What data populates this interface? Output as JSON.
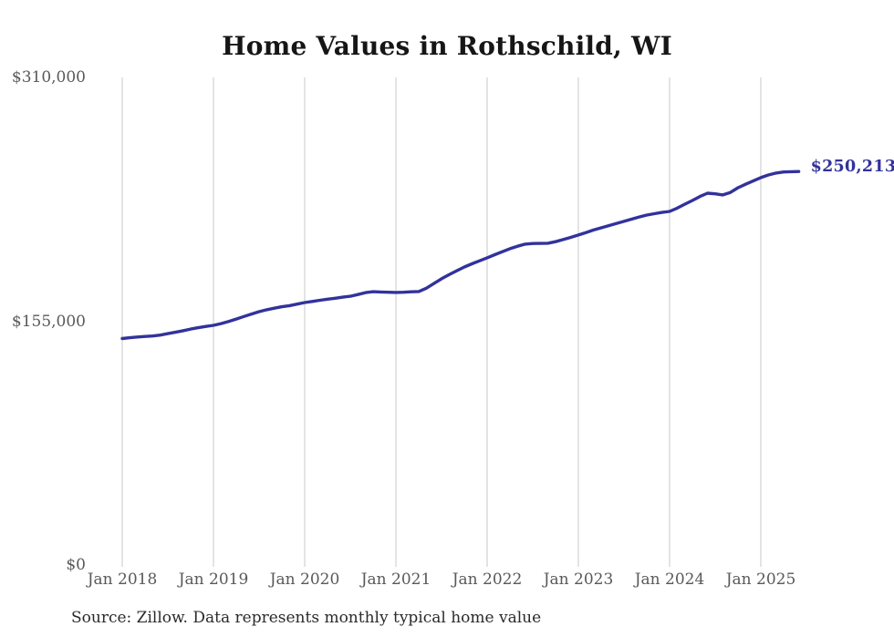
{
  "page": {
    "source_note": "Source: Zillow. Data represents monthly typical home value"
  },
  "chart_data": {
    "type": "line",
    "title": "Home Values in Rothschild, WI",
    "series_name": "Monthly typical home value",
    "xlabel": "",
    "ylabel": "",
    "ylim": [
      0,
      310000
    ],
    "grid": "vertical-only",
    "legend": "none",
    "line_color": "#32329c",
    "gridline_color": "#c9c9c9",
    "tick_label_color": "#595959",
    "end_label": "$250,213",
    "end_value": 250213,
    "y_ticks": [
      {
        "value": 0,
        "label": "$0"
      },
      {
        "value": 155000,
        "label": "$155,000"
      },
      {
        "value": 310000,
        "label": "$310,000"
      }
    ],
    "x_tick_labels": [
      "Jan 2018",
      "Jan 2019",
      "Jan 2020",
      "Jan 2021",
      "Jan 2022",
      "Jan 2023",
      "Jan 2024",
      "Jan 2025"
    ],
    "x": [
      "2018-01",
      "2018-02",
      "2018-03",
      "2018-04",
      "2018-05",
      "2018-06",
      "2018-07",
      "2018-08",
      "2018-09",
      "2018-10",
      "2018-11",
      "2018-12",
      "2019-01",
      "2019-02",
      "2019-03",
      "2019-04",
      "2019-05",
      "2019-06",
      "2019-07",
      "2019-08",
      "2019-09",
      "2019-10",
      "2019-11",
      "2019-12",
      "2020-01",
      "2020-02",
      "2020-03",
      "2020-04",
      "2020-05",
      "2020-06",
      "2020-07",
      "2020-08",
      "2020-09",
      "2020-10",
      "2020-11",
      "2020-12",
      "2021-01",
      "2021-02",
      "2021-03",
      "2021-04",
      "2021-05",
      "2021-06",
      "2021-07",
      "2021-08",
      "2021-09",
      "2021-10",
      "2021-11",
      "2021-12",
      "2022-01",
      "2022-02",
      "2022-03",
      "2022-04",
      "2022-05",
      "2022-06",
      "2022-07",
      "2022-08",
      "2022-09",
      "2022-10",
      "2022-11",
      "2022-12",
      "2023-01",
      "2023-02",
      "2023-03",
      "2023-04",
      "2023-05",
      "2023-06",
      "2023-07",
      "2023-08",
      "2023-09",
      "2023-10",
      "2023-11",
      "2023-12",
      "2024-01",
      "2024-02",
      "2024-03",
      "2024-04",
      "2024-05",
      "2024-06",
      "2024-07",
      "2024-08",
      "2024-09",
      "2024-10",
      "2024-11",
      "2024-12",
      "2025-01",
      "2025-02",
      "2025-03",
      "2025-04",
      "2025-05",
      "2025-06"
    ],
    "values": [
      144000,
      144500,
      145000,
      145300,
      145600,
      146200,
      147100,
      148000,
      149000,
      150000,
      150900,
      151700,
      152400,
      153500,
      154900,
      156400,
      158000,
      159600,
      161100,
      162300,
      163300,
      164200,
      164900,
      165900,
      166900,
      167600,
      168300,
      169000,
      169600,
      170300,
      170900,
      172000,
      173200,
      173800,
      173600,
      173400,
      173300,
      173400,
      173700,
      173900,
      176000,
      179000,
      182000,
      184600,
      187100,
      189500,
      191500,
      193400,
      195300,
      197300,
      199200,
      201100,
      202700,
      204000,
      204400,
      204500,
      204600,
      205600,
      206900,
      208300,
      209800,
      211400,
      213000,
      214400,
      215800,
      217200,
      218500,
      219900,
      221300,
      222500,
      223400,
      224200,
      224800,
      226900,
      229400,
      231800,
      234300,
      236400,
      236000,
      235300,
      236900,
      239900,
      242100,
      244200,
      246300,
      248000,
      249200,
      249900,
      250100,
      250213
    ]
  }
}
